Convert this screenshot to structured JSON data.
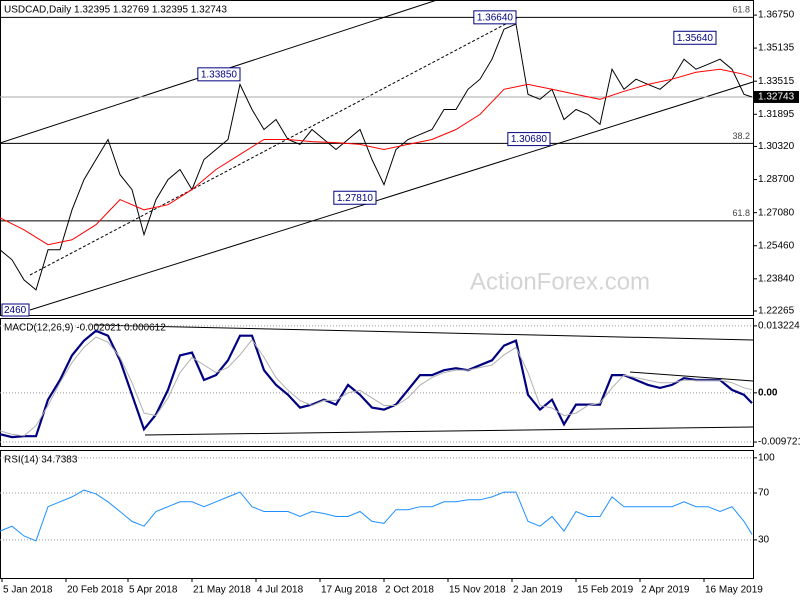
{
  "chart_data": [
    {
      "type": "line",
      "title": "USDCAD,Daily 1.32395 1.32769 1.32395 1.32743",
      "xlim": [
        0,
        376.5
      ],
      "ylim": [
        1.2207,
        1.3744
      ],
      "yticks": [
        {
          "value": 1.3675,
          "label": "1.36750"
        },
        1.35135,
        1.33515,
        1.31895,
        {
          "value": 1.3032,
          "label": "1.30320"
        },
        {
          "value": 1.287,
          "label": "1.28700"
        },
        {
          "value": 1.2708,
          "label": "1.27080"
        },
        {
          "value": 1.2546,
          "label": "1.25460"
        },
        {
          "value": 1.2384,
          "label": "1.23840"
        },
        1.22265
      ],
      "series": [
        {
          "color": "#000000",
          "x": [
            0,
            6,
            12,
            18,
            24,
            30,
            36,
            42,
            48,
            54,
            60,
            66,
            72,
            78,
            84,
            90,
            96,
            102,
            108,
            114,
            120,
            126,
            132,
            138,
            144,
            150,
            156,
            162,
            168,
            174,
            180,
            186,
            192,
            198,
            204,
            210,
            216,
            222,
            228,
            234,
            240,
            246,
            252,
            258,
            264,
            270,
            276,
            282,
            288,
            294,
            300,
            306,
            312,
            318,
            324,
            330,
            336,
            342,
            348,
            354,
            360,
            366,
            372,
            376
          ],
          "values": [
            1.2526,
            1.2477,
            1.2379,
            1.233,
            1.2526,
            1.2526,
            1.2722,
            1.287,
            1.2968,
            1.3066,
            1.2894,
            1.2821,
            1.26,
            1.2772,
            1.287,
            1.2919,
            1.2821,
            1.2968,
            1.3017,
            1.3066,
            1.3336,
            1.3213,
            1.3115,
            1.3164,
            1.3066,
            1.3042,
            1.3115,
            1.3066,
            1.3017,
            1.3066,
            1.3115,
            1.2968,
            1.2845,
            1.3017,
            1.3066,
            1.3091,
            1.3115,
            1.3213,
            1.3213,
            1.3312,
            1.3361,
            1.3459,
            1.3606,
            1.3631,
            1.3287,
            1.3263,
            1.3312,
            1.3164,
            1.3213,
            1.3189,
            1.314,
            1.341,
            1.3312,
            1.3361,
            1.3336,
            1.3312,
            1.3361,
            1.3459,
            1.341,
            1.3434,
            1.3459,
            1.341,
            1.3287,
            1.32743
          ]
        },
        {
          "color": "#ff0000",
          "x": [
            0,
            12,
            24,
            36,
            48,
            60,
            72,
            84,
            96,
            108,
            120,
            132,
            144,
            156,
            168,
            180,
            192,
            204,
            216,
            228,
            240,
            252,
            264,
            276,
            288,
            300,
            312,
            324,
            336,
            348,
            360,
            372,
            376
          ],
          "values": [
            1.2683,
            1.2624,
            1.2551,
            1.2575,
            1.2649,
            1.2772,
            1.2722,
            1.2747,
            1.2821,
            1.2919,
            1.2993,
            1.3066,
            1.3066,
            1.3056,
            1.3051,
            1.3042,
            1.3017,
            1.3042,
            1.3066,
            1.3115,
            1.3189,
            1.3312,
            1.3336,
            1.3312,
            1.3287,
            1.3263,
            1.3302,
            1.3336,
            1.3361,
            1.3395,
            1.341,
            1.3385,
            1.3371
          ]
        }
      ],
      "last_price": {
        "value": 1.32743,
        "label": "1.32743"
      },
      "levels": [
        {
          "value": 1.3664,
          "label": "61.8"
        },
        {
          "value": 1.3047,
          "label": "38.2"
        },
        {
          "value": 1.2668,
          "label": "61.8"
        }
      ],
      "annotations": [
        {
          "x": 258,
          "value": 1.3664,
          "label": "1.36640"
        },
        {
          "x": 358,
          "value": 1.3564,
          "label": "1.35640"
        },
        {
          "x": 120,
          "value": 1.3385,
          "label": "1.33850"
        },
        {
          "x": 275,
          "value": 1.3068,
          "label": "1.30680"
        },
        {
          "x": 188,
          "value": 1.2781,
          "label": "1.27810"
        }
      ],
      "cut_label": "2460",
      "watermark": "ActionForex.com"
    },
    {
      "type": "line",
      "title": "MACD(12,26,9) -0.002021 0.000612",
      "xlim": [
        0,
        376.5
      ],
      "ylim": [
        -0.010503,
        0.014585
      ],
      "yticks": [
        0.013224,
        {
          "value": 0,
          "label": "0.00"
        },
        -0.009721
      ],
      "grid": true,
      "series": [
        {
          "color": "#000080",
          "width": 2.2,
          "x": [
            0,
            6,
            12,
            18,
            24,
            30,
            36,
            42,
            48,
            54,
            60,
            66,
            72,
            78,
            84,
            90,
            96,
            102,
            108,
            114,
            120,
            126,
            132,
            138,
            144,
            150,
            156,
            162,
            168,
            174,
            180,
            186,
            192,
            198,
            204,
            210,
            216,
            222,
            228,
            234,
            240,
            246,
            252,
            258,
            264,
            270,
            276,
            282,
            288,
            294,
            300,
            306,
            312,
            318,
            324,
            330,
            336,
            342,
            348,
            354,
            360,
            366,
            372,
            376
          ],
          "values": [
            -0.00817,
            -0.00875,
            -0.00856,
            -0.00856,
            -0.00136,
            0.00253,
            0.00739,
            0.01031,
            0.01225,
            0.01128,
            0.00642,
            -0.00039,
            -0.0072,
            -0.00428,
            0.00058,
            0.00739,
            0.00797,
            0.00253,
            0.0035,
            0.00642,
            0.01128,
            0.01128,
            0.00447,
            0.00156,
            -0.00039,
            -0.00292,
            -0.00233,
            -0.00136,
            -0.00233,
            0.00156,
            -0.00039,
            -0.00292,
            -0.00331,
            -0.00233,
            0.00058,
            0.0035,
            0.0035,
            0.00447,
            0.00486,
            0.00447,
            0.00545,
            0.00642,
            0.00934,
            0.01031,
            -0.00039,
            -0.00331,
            -0.00136,
            -0.00622,
            -0.00233,
            -0.00233,
            -0.00233,
            0.0035,
            0.0035,
            0.00253,
            0.00156,
            0.00097,
            0.00156,
            0.00292,
            0.00253,
            0.00253,
            0.00253,
            0.00058,
            -0.00039,
            -0.002021
          ]
        },
        {
          "color": "#b0b0b0",
          "width": 1,
          "x": [
            0,
            6,
            12,
            18,
            24,
            30,
            36,
            42,
            48,
            54,
            60,
            66,
            72,
            78,
            84,
            90,
            96,
            102,
            108,
            114,
            120,
            126,
            132,
            138,
            144,
            150,
            156,
            162,
            168,
            174,
            180,
            186,
            192,
            198,
            204,
            210,
            216,
            222,
            228,
            234,
            240,
            246,
            252,
            258,
            264,
            270,
            276,
            282,
            288,
            294,
            300,
            306,
            312,
            318,
            324,
            330,
            336,
            342,
            348,
            354,
            360,
            366,
            372,
            376
          ],
          "values": [
            -0.0075,
            -0.0082,
            -0.0085,
            -0.0065,
            -0.0025,
            0.002,
            0.006,
            0.009,
            0.011,
            0.01,
            0.007,
            0.002,
            -0.004,
            -0.0045,
            -0.001,
            0.004,
            0.007,
            0.0055,
            0.004,
            0.005,
            0.0075,
            0.0105,
            0.007,
            0.003,
            0.0005,
            -0.0015,
            -0.0025,
            -0.0015,
            -0.0015,
            0,
            0.0005,
            -0.001,
            -0.0025,
            -0.0025,
            -0.001,
            0.0015,
            0.003,
            0.004,
            0.0045,
            0.0045,
            0.005,
            0.0055,
            0.0075,
            0.009,
            0.004,
            -0.0025,
            -0.003,
            -0.0045,
            -0.004,
            -0.0025,
            -0.002,
            0.001,
            0.0035,
            0.003,
            0.0025,
            0.002,
            0.002,
            0.0025,
            0.0025,
            0.0025,
            0.0025,
            0.002,
            0.001,
            0.000612
          ]
        }
      ]
    },
    {
      "type": "line",
      "title": "RSI(14) 34.7383",
      "xlim": [
        0,
        376.5
      ],
      "ylim": [
        -2.5,
        105.83
      ],
      "yticks": [
        100,
        70,
        30
      ],
      "grid": true,
      "xticks": [
        {
          "value": 1,
          "label": "5 Jan 2018"
        },
        {
          "value": 33,
          "label": "20 Feb 2018"
        },
        {
          "value": 64,
          "label": "5 Apr 2018"
        },
        {
          "value": 96,
          "label": "21 May 2018"
        },
        {
          "value": 128,
          "label": "4 Jul 2018"
        },
        {
          "value": 160,
          "label": "17 Aug 2018"
        },
        {
          "value": 192,
          "label": "2 Oct 2018"
        },
        {
          "value": 224,
          "label": "15 Nov 2018"
        },
        {
          "value": 256,
          "label": "2 Jan 2019"
        },
        {
          "value": 288,
          "label": "15 Feb 2019"
        },
        {
          "value": 320,
          "label": "2 Apr 2019"
        },
        {
          "value": 352,
          "label": "16 May 2019"
        }
      ],
      "series": [
        {
          "color": "#1e90ff",
          "width": 1,
          "x": [
            0,
            6,
            12,
            18,
            24,
            30,
            36,
            42,
            48,
            54,
            60,
            66,
            72,
            78,
            84,
            90,
            96,
            102,
            108,
            114,
            120,
            126,
            132,
            138,
            144,
            150,
            156,
            162,
            168,
            174,
            180,
            186,
            192,
            198,
            204,
            210,
            216,
            222,
            228,
            234,
            240,
            246,
            252,
            258,
            264,
            270,
            276,
            282,
            288,
            294,
            300,
            306,
            312,
            318,
            324,
            330,
            336,
            342,
            348,
            354,
            360,
            366,
            372,
            376
          ],
          "values": [
            37.5,
            41.7,
            33.3,
            29.2,
            58.3,
            62.5,
            66.7,
            72.5,
            69.2,
            62.5,
            54.2,
            45.8,
            41.7,
            54.2,
            58.3,
            62.5,
            62.5,
            58.3,
            62.5,
            66.7,
            70.8,
            58.3,
            54.2,
            54.2,
            54.2,
            50,
            54.2,
            52.5,
            50,
            50,
            54.2,
            45.8,
            44.2,
            55.8,
            55.8,
            58.3,
            58.3,
            62.5,
            62.5,
            64.2,
            64.2,
            66.7,
            70.8,
            70.8,
            45.8,
            41.7,
            50,
            37.5,
            54.2,
            50,
            50,
            66.7,
            58.3,
            58.3,
            58.3,
            58.3,
            58.3,
            62.5,
            58.3,
            58.3,
            54.2,
            58.3,
            45.8,
            34.7383
          ]
        }
      ]
    }
  ]
}
